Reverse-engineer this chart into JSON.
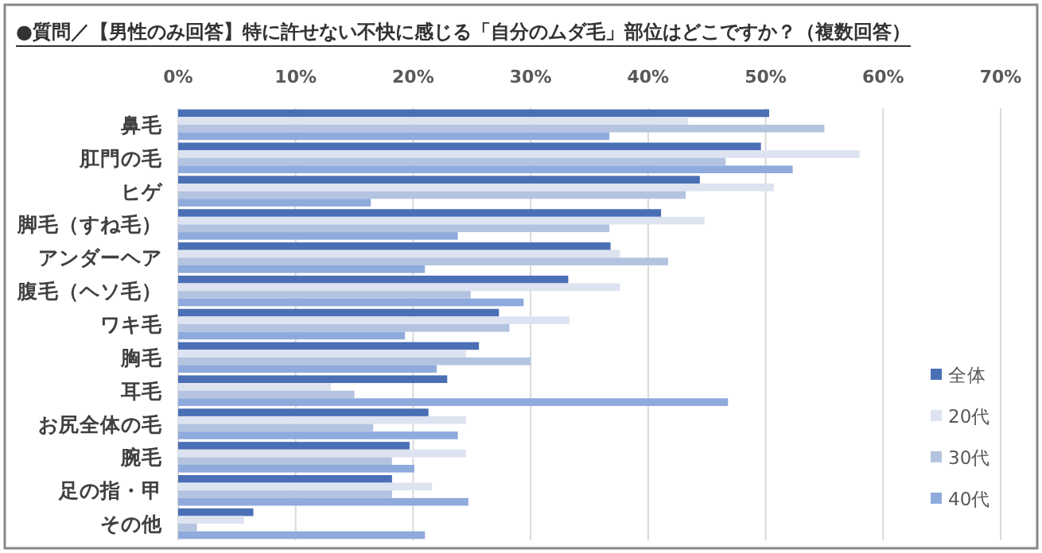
{
  "chart_data": {
    "type": "bar",
    "orientation": "horizontal",
    "title": "●質問／【男性のみ回答】特に許せない不快に感じる「自分のムダ毛」部位はどこですか？（複数回答）",
    "categories": [
      "鼻毛",
      "肛門の毛",
      "ヒゲ",
      "脚毛（すね毛）",
      "アンダーヘア",
      "腹毛（ヘソ毛）",
      "ワキ毛",
      "胸毛",
      "耳毛",
      "お尻全体の毛",
      "腕毛",
      "足の指・甲",
      "その他"
    ],
    "series": [
      {
        "name": "全体",
        "color": "#4a6fb5",
        "values": [
          50.3,
          49.6,
          44.4,
          41.1,
          36.8,
          33.2,
          27.3,
          25.6,
          22.9,
          21.3,
          19.7,
          18.2,
          6.4
        ]
      },
      {
        "name": "20代",
        "color": "#dde3f0",
        "values": [
          43.4,
          58.0,
          50.7,
          44.8,
          37.6,
          37.6,
          33.3,
          24.5,
          13.0,
          24.5,
          24.5,
          21.6,
          5.6
        ]
      },
      {
        "name": "30代",
        "color": "#b4c4e0",
        "values": [
          55.0,
          46.6,
          43.2,
          36.7,
          41.7,
          24.9,
          28.2,
          30.0,
          15.0,
          16.6,
          18.2,
          18.2,
          1.6
        ]
      },
      {
        "name": "40代",
        "color": "#8faadc",
        "values": [
          36.7,
          52.3,
          16.4,
          23.8,
          21.0,
          29.4,
          19.3,
          22.0,
          46.8,
          23.8,
          20.1,
          24.7,
          21.0
        ]
      }
    ],
    "xlim": [
      0,
      70
    ],
    "xticks": [
      {
        "value": 0,
        "label": "0%"
      },
      {
        "value": 10,
        "label": "10%"
      },
      {
        "value": 20,
        "label": "20%"
      },
      {
        "value": 30,
        "label": "30%"
      },
      {
        "value": 40,
        "label": "40%"
      },
      {
        "value": 50,
        "label": "50%"
      },
      {
        "value": 60,
        "label": "60%"
      },
      {
        "value": 70,
        "label": "70%"
      }
    ],
    "grid": "x",
    "legend": "bottom right"
  }
}
